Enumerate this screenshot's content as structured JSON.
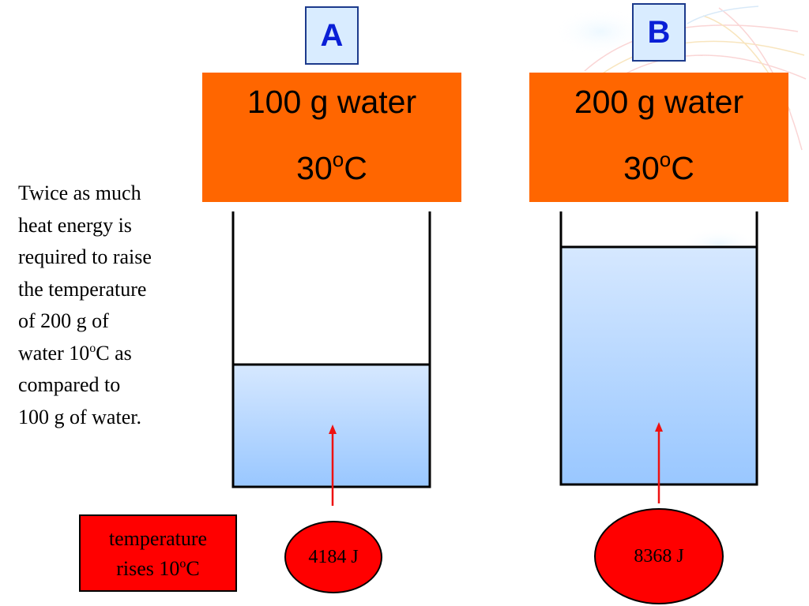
{
  "colors": {
    "header_fill": "#ff6600",
    "label_fill": "#d9ecff",
    "label_text": "#0a1fd6",
    "arrow": "#ee1111",
    "energy_fill": "#ff0000",
    "water_top": "#d6e8ff",
    "water_bottom": "#99c7ff"
  },
  "beaker_a": {
    "label": "A",
    "mass": "100 g water",
    "temp_value": "30",
    "temp_degree": "o",
    "temp_unit": "C",
    "energy": "4184 J"
  },
  "beaker_b": {
    "label": "B",
    "mass": "200 g water",
    "temp_value": "30",
    "temp_degree": "o",
    "temp_unit": "C",
    "energy": "8368 J"
  },
  "explanation": {
    "line1": "Twice as much",
    "line2": "heat energy is",
    "line3": "required to raise",
    "line4": "the temperature",
    "line5": "of 200 g of",
    "line6_before": "water 10",
    "line6_sup": "o",
    "line6_after": "C as",
    "line7": "compared to",
    "line8": "100 g of water."
  },
  "temperature_note": {
    "line1": "temperature",
    "line2_before": "rises 10",
    "line2_sup": "o",
    "line2_after": "C"
  }
}
